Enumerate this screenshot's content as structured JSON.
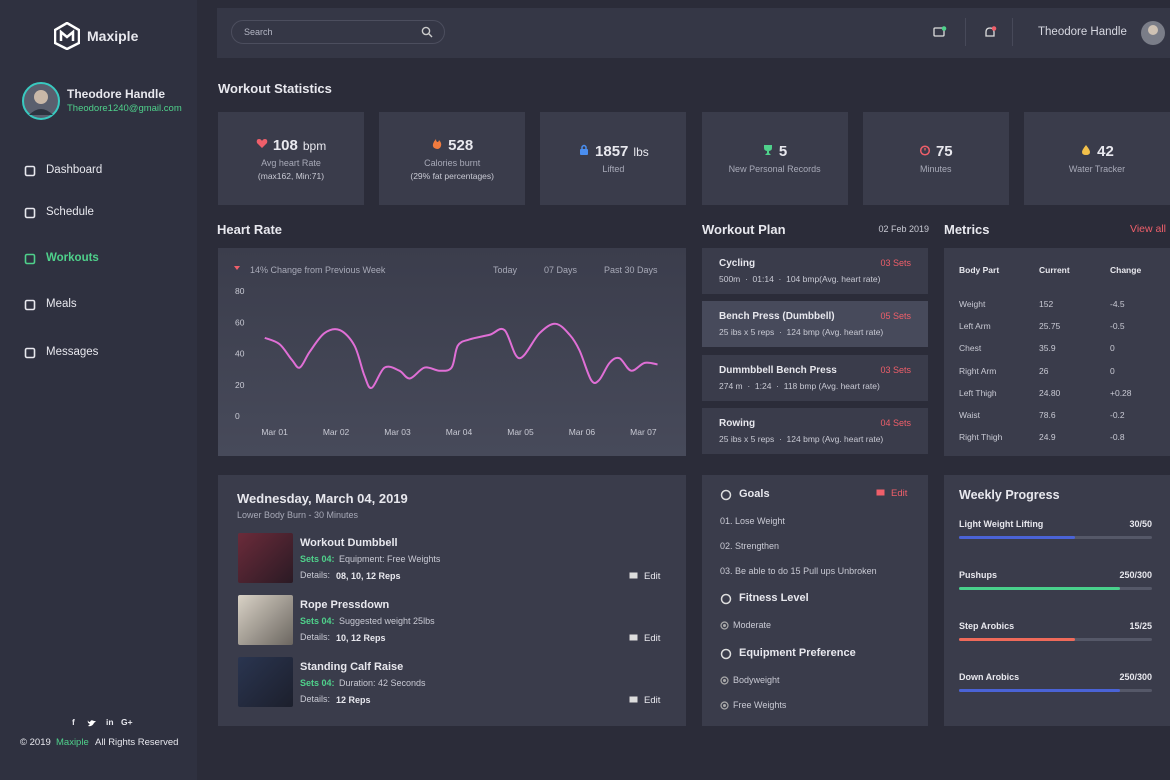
{
  "sidebar": {
    "brand": "Maxiple",
    "user_name": "Theodore Handle",
    "user_email": "Theodore1240@gmail.com",
    "nav": [
      {
        "label": "Dashboard",
        "active": false
      },
      {
        "label": "Schedule",
        "active": false
      },
      {
        "label": "Workouts",
        "active": true
      },
      {
        "label": "Meals",
        "active": false
      },
      {
        "label": "Messages",
        "active": false
      }
    ],
    "social": [
      "f",
      "in",
      "G+"
    ],
    "copyright": "© 2019",
    "copyright_brand": "Maxiple",
    "copyright_rest": "All Rights Reserved"
  },
  "header": {
    "search_placeholder": "Search",
    "user_name": "Theodore Handle"
  },
  "stats": {
    "title": "Workout Statistics",
    "cards": [
      {
        "value": 108,
        "unit": "bpm",
        "label": "Avg heart Rate",
        "sub": "(max162, Min:71)"
      },
      {
        "value": 528,
        "label": "Calories burnt",
        "sub": "(29% fat percentages)"
      },
      {
        "value": 1857,
        "unit": "lbs",
        "label": "Lifted"
      },
      {
        "value": 5,
        "label": "New Personal Records"
      },
      {
        "value": 75,
        "label": "Minutes"
      },
      {
        "value": 42,
        "label": "Water Tracker"
      }
    ]
  },
  "heart_rate": {
    "title": "Heart Rate",
    "chart_data": {
      "type": "line",
      "change": "14% Change from Previous Week",
      "tabs": [
        "Today",
        "07 Days",
        "Past 30 Days"
      ],
      "x": [
        -0.16,
        0.08,
        0.28,
        0.41,
        0.57,
        0.81,
        1.06,
        1.3,
        1.46,
        1.58,
        1.79,
        2.03,
        2.2,
        2.44,
        2.68,
        2.88,
        2.98,
        3.17,
        3.5,
        3.74,
        3.98,
        4.31,
        4.57,
        4.8,
        4.96,
        5.15,
        5.28,
        5.45,
        5.61,
        5.8,
        6.02,
        6.23
      ],
      "values": [
        50,
        46,
        36,
        31,
        41,
        53,
        55,
        45,
        26,
        18,
        31,
        29,
        24,
        31,
        29,
        31,
        45,
        49,
        52,
        55,
        37,
        53,
        59,
        52,
        42,
        23,
        23,
        34,
        37,
        29,
        34,
        33
      ],
      "color": "#e06fd6",
      "xlim": [
        -0.4,
        6.4
      ],
      "ylim": [
        0,
        80
      ],
      "yticks": [
        0,
        20,
        40,
        60,
        80
      ],
      "xticks": [
        {
          "value": 0,
          "label": "Mar 01"
        },
        {
          "value": 1,
          "label": "Mar 02"
        },
        {
          "value": 2,
          "label": "Mar 03"
        },
        {
          "value": 3,
          "label": "Mar 04"
        },
        {
          "value": 4,
          "label": "Mar 05"
        },
        {
          "value": 5,
          "label": "Mar 06"
        },
        {
          "value": 6,
          "label": "Mar 07"
        }
      ]
    }
  },
  "workout_plan": {
    "title": "Workout Plan",
    "date": "02 Feb 2019",
    "items": [
      {
        "name": "Cycling",
        "sets": "03 Sets",
        "detail": "500m  ·  01:14  ·  104 bmp(Avg. heart rate)"
      },
      {
        "name": "Bench Press (Dumbbell)",
        "sets": "05 Sets",
        "detail": "25 ibs x 5 reps  ·  124 bmp (Avg. heart rate)"
      },
      {
        "name": "Dummbbell Bench Press",
        "sets": "03 Sets",
        "detail": "274 m  ·  1:24  ·  118 bmp (Avg. heart rate)"
      },
      {
        "name": "Rowing",
        "sets": "04 Sets",
        "detail": "25 ibs x 5 reps  ·  124 bmp (Avg. heart rate)"
      }
    ]
  },
  "metrics": {
    "title": "Metrics",
    "link": "View all",
    "headers": [
      "Body Part",
      "Current",
      "Change"
    ],
    "rows": [
      [
        "Weight",
        "152",
        "-4.5"
      ],
      [
        "Left Arm",
        "25.75",
        "-0.5"
      ],
      [
        "Chest",
        "35.9",
        "0"
      ],
      [
        "Right Arm",
        "26",
        "0"
      ],
      [
        "Left Thigh",
        "24.80",
        "+0.28"
      ],
      [
        "Waist",
        "78.6",
        "-0.2"
      ],
      [
        "Right Thigh",
        "24.9",
        "-0.8"
      ]
    ]
  },
  "schedule": {
    "date": "Wednesday, March 04, 2019",
    "subtitle": "Lower Body Burn - 30 Minutes",
    "items": [
      {
        "name": "Workout Dumbbell",
        "sets": "Sets 04:",
        "info": "Equipment: Free Weights",
        "details_label": "Details:",
        "details": "08, 10, 12 Reps",
        "edit": "Edit"
      },
      {
        "name": "Rope Pressdown",
        "sets": "Sets 04:",
        "info": "Suggested weight 25lbs",
        "details_label": "Details:",
        "details": "10, 12 Reps",
        "edit": "Edit"
      },
      {
        "name": "Standing Calf Raise",
        "sets": "Sets 04:",
        "info": "Duration: 42 Seconds",
        "details_label": "Details:",
        "details": "12 Reps",
        "edit": "Edit"
      }
    ]
  },
  "goals": {
    "title": "Goals",
    "edit": "Edit",
    "items": [
      "01.  Lose Weight",
      "02. Strengthen",
      "03. Be able to do 15 Pull ups Unbroken"
    ],
    "fitness_title": "Fitness Level",
    "fitness": [
      "Moderate"
    ],
    "equipment_title": "Equipment Preference",
    "equipment": [
      "Bodyweight",
      "Free Weights"
    ]
  },
  "weekly": {
    "title": "Weekly Progress",
    "items": [
      {
        "name": "Light Weight Lifting",
        "label": "30/50",
        "value": 30,
        "total": 50,
        "color": "#4a63d6"
      },
      {
        "name": "Pushups",
        "label": "250/300",
        "value": 250,
        "total": 300,
        "color": "#49d18c"
      },
      {
        "name": "Step Arobics",
        "label": "15/25",
        "value": 15,
        "total": 25,
        "color": "#ef6a5a"
      },
      {
        "name": "Down Arobics",
        "label": "250/300",
        "value": 250,
        "total": 300,
        "color": "#4a63d6"
      }
    ]
  }
}
